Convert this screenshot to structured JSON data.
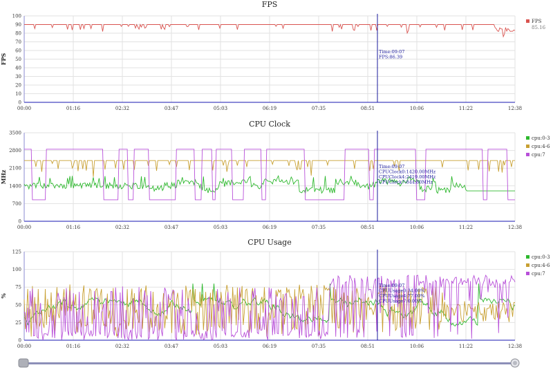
{
  "chart_data": [
    {
      "type": "line",
      "title": "FPS",
      "ylabel": "FPS",
      "ylim": [
        0,
        100
      ],
      "yticks": [
        "0",
        "10",
        "20",
        "30",
        "40",
        "50",
        "60",
        "70",
        "80",
        "90",
        "100"
      ],
      "x_ticks": [
        "00:00",
        "01:16",
        "02:32",
        "03:47",
        "05:03",
        "06:19",
        "07:35",
        "08:51",
        "10:06",
        "11:22",
        "12:38"
      ],
      "series": [
        {
          "name": "FPS",
          "color": "#d9534f",
          "legend_value": "85.16",
          "baseline": 90,
          "min_dip": 76
        }
      ],
      "cursor": {
        "time": "09:07",
        "label_lines": [
          "Time:09:07",
          "FPS:86.39"
        ]
      },
      "grid": true
    },
    {
      "type": "line",
      "title": "CPU Clock",
      "ylabel": "MHz",
      "ylim": [
        0,
        3500
      ],
      "yticks": [
        "0",
        "700",
        "1400",
        "2100",
        "2800",
        "3500"
      ],
      "x_ticks": [
        "00:00",
        "01:16",
        "02:32",
        "03:47",
        "05:03",
        "06:19",
        "07:35",
        "08:51",
        "10:06",
        "11:22",
        "12:38"
      ],
      "series": [
        {
          "name": "cpu:0-3",
          "color": "#2db82d",
          "typical": 1400,
          "range": [
            1100,
            1800
          ]
        },
        {
          "name": "cpu:4-6",
          "color": "#c8a032",
          "typical": 2400,
          "range": [
            1700,
            2400
          ]
        },
        {
          "name": "cpu:7",
          "color": "#b84fd9",
          "levels": [
            850,
            2850
          ]
        }
      ],
      "cursor": {
        "time": "09:07",
        "label_lines": [
          "Time:09:07",
          "CPUClock0:1420.00MHz",
          "CPUClock4:2419.00MHz",
          "CPUClock7:844.80MHz"
        ]
      },
      "grid": true
    },
    {
      "type": "line",
      "title": "CPU Usage",
      "ylabel": "%",
      "ylim": [
        0,
        125
      ],
      "yticks": [
        "0",
        "25",
        "50",
        "75",
        "100",
        "125"
      ],
      "x_ticks": [
        "00:00",
        "01:16",
        "02:32",
        "03:47",
        "05:03",
        "06:19",
        "07:35",
        "08:51",
        "10:06",
        "11:22",
        "12:38"
      ],
      "series": [
        {
          "name": "cpu:0-3",
          "color": "#2db82d",
          "typical": 30,
          "range": [
            20,
            60
          ]
        },
        {
          "name": "cpu:4-6",
          "color": "#c8a032",
          "typical": 45,
          "range": [
            0,
            80
          ]
        },
        {
          "name": "cpu:7",
          "color": "#b84fd9",
          "typical": 40,
          "range": [
            0,
            95
          ]
        }
      ],
      "cursor": {
        "time": "09:07",
        "label_lines": [
          "Time:09:07",
          "CPUUsage0:34.00%",
          "CPUUsage4:77.00%",
          "CPUUsage7:0.00%"
        ]
      },
      "grid": true
    }
  ],
  "timeline_slider": {
    "start": "00:00",
    "end": "12:38"
  }
}
